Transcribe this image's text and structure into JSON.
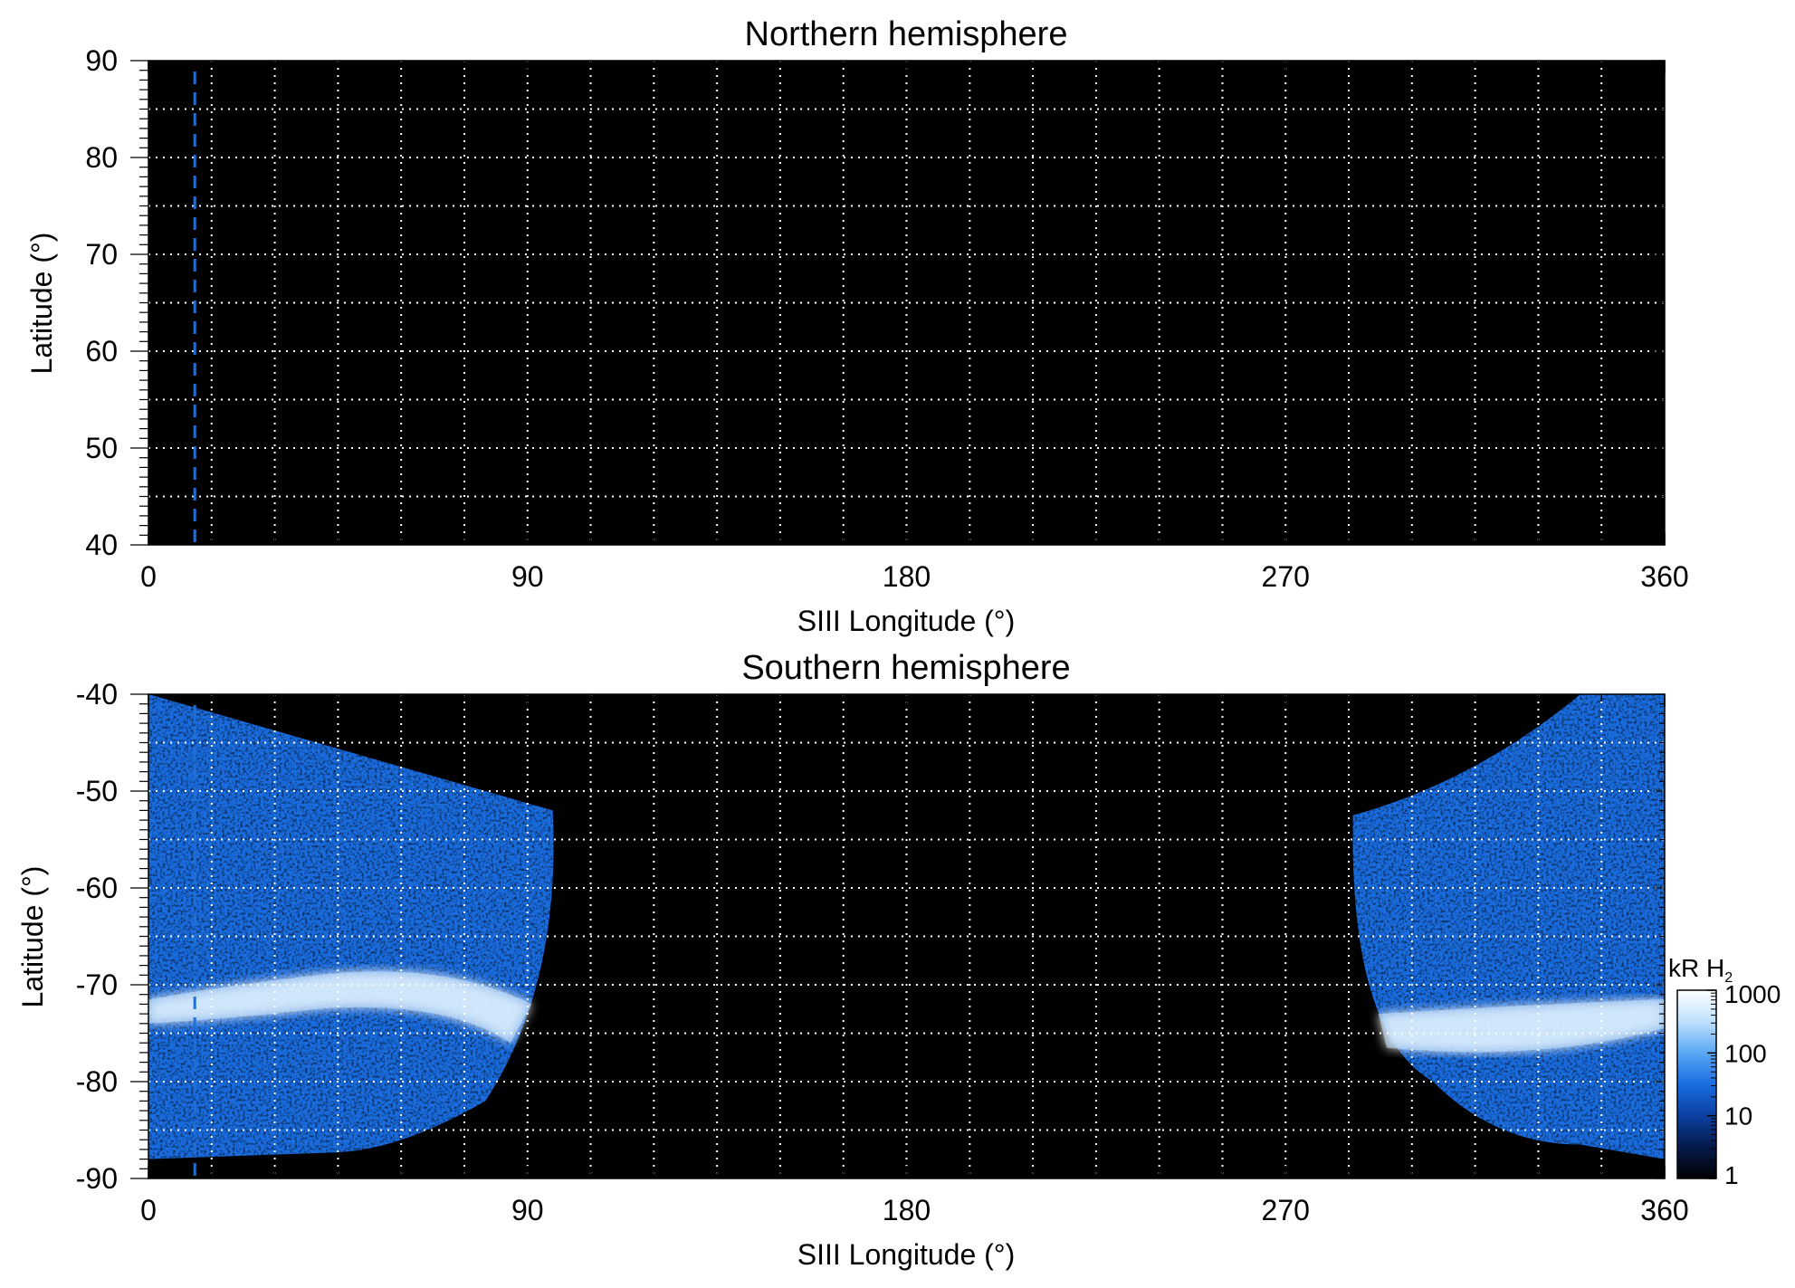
{
  "chart_data": [
    {
      "type": "heatmap",
      "title": "Northern hemisphere",
      "xlabel": "SIII Longitude (°)",
      "ylabel": "Latitude (°)",
      "xlim": [
        0,
        360
      ],
      "ylim": [
        40,
        90
      ],
      "xticks": [
        "0",
        "90",
        "180",
        "270",
        "360"
      ],
      "yticks": [
        "90",
        "80",
        "70",
        "60",
        "50",
        "40"
      ],
      "xtick_values": [
        0,
        90,
        180,
        270,
        360
      ],
      "ytick_values": [
        90,
        80,
        70,
        60,
        50,
        40
      ],
      "grid": true,
      "grid_x_step": 15,
      "grid_y_step": 5,
      "reference_line": {
        "longitude": 11,
        "style": "dashed",
        "color": "#1f6fd6"
      },
      "emission_regions": []
    },
    {
      "type": "heatmap",
      "title": "Southern hemisphere",
      "xlabel": "SIII Longitude (°)",
      "ylabel": "Latitude (°)",
      "xlim": [
        0,
        360
      ],
      "ylim": [
        -90,
        -40
      ],
      "xticks": [
        "0",
        "90",
        "180",
        "270",
        "360"
      ],
      "yticks": [
        "-40",
        "-50",
        "-60",
        "-70",
        "-80",
        "-90"
      ],
      "xtick_values": [
        0,
        90,
        180,
        270,
        360
      ],
      "ytick_values": [
        -40,
        -50,
        -60,
        -70,
        -80,
        -90
      ],
      "grid": true,
      "grid_x_step": 15,
      "grid_y_step": 5,
      "reference_line": {
        "longitude": 11,
        "style": "dashed",
        "color": "#1f6fd6"
      },
      "emission_regions": [
        {
          "lon_range": [
            0,
            96
          ],
          "lat_range": [
            -88,
            -40
          ],
          "oval_lat": [
            -70.5,
            -67.5
          ],
          "oval_peak_lon": 70
        },
        {
          "lon_range": [
            286,
            360
          ],
          "lat_range": [
            -88,
            -40
          ],
          "oval_lat": [
            -78,
            -72
          ],
          "oval_peak_lon": 330
        }
      ],
      "colorbar": {
        "unit_main": "kR H",
        "unit_sub": "2",
        "scale": "log",
        "range": [
          1,
          1000
        ],
        "ticks": [
          "1000",
          "100",
          "10",
          "1"
        ],
        "tick_values": [
          1000,
          100,
          10,
          1
        ],
        "colors": [
          "#000000",
          "#061a4a",
          "#0b3fa0",
          "#1a6de0",
          "#5aa7f4",
          "#bfe0fc",
          "#ffffff"
        ]
      }
    }
  ]
}
